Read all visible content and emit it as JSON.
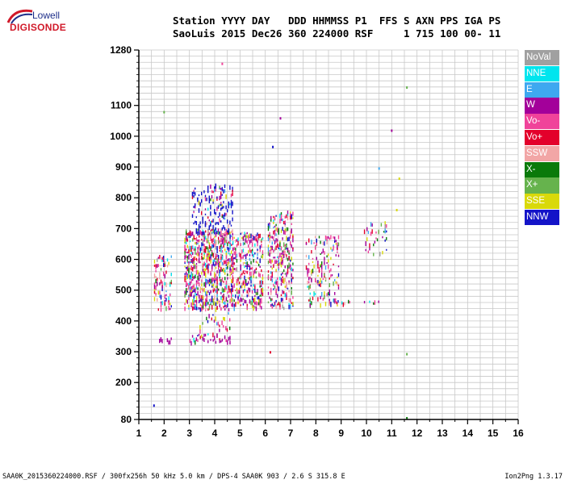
{
  "logo": {
    "top_text": "Lowell",
    "bottom_text": "DIGISONDE"
  },
  "header": {
    "line1": "Station YYYY DAY   DDD HHMMSS P1  FFS S AXN PPS IGA PS",
    "line2": "SaoLuis 2015 Dec26 360 224000 RSF     1 715 100 00- 11"
  },
  "legend": [
    {
      "label": "NoVal",
      "color": "#a0a0a0"
    },
    {
      "label": "NNE",
      "color": "#00e5ee"
    },
    {
      "label": "E",
      "color": "#3ea8f0"
    },
    {
      "label": "W",
      "color": "#a3009a"
    },
    {
      "label": "Vo-",
      "color": "#f0439a"
    },
    {
      "label": "Vo+",
      "color": "#e3002b"
    },
    {
      "label": "SSW",
      "color": "#f2a6a6"
    },
    {
      "label": "X-",
      "color": "#0a7a0a"
    },
    {
      "label": "X+",
      "color": "#66b34d"
    },
    {
      "label": "SSE",
      "color": "#d9d90a"
    },
    {
      "label": "NNW",
      "color": "#1414c8"
    }
  ],
  "footer": {
    "left": "SAA0K_2015360224000.RSF / 300fx256h 50 kHz 5.0 km / DPS-4 SAA0K 903 / 2.6 S 315.8 E",
    "right": "Ion2Png 1.3.17"
  },
  "chart_data": {
    "type": "scatter",
    "xlim": [
      1,
      16
    ],
    "ylim": [
      80,
      1280
    ],
    "x_ticks": [
      "1",
      "2",
      "3",
      "4",
      "5",
      "6",
      "7",
      "8",
      "9",
      "10",
      "11",
      "12",
      "13",
      "14",
      "15",
      "16"
    ],
    "y_ticks": [
      "80",
      "200",
      "300",
      "400",
      "500",
      "600",
      "700",
      "800",
      "900",
      "1000",
      "1100",
      "1280"
    ],
    "grid": true,
    "legend_position": "right",
    "clusters": [
      {
        "x_range": [
          1.6,
          2.3
        ],
        "y_range": [
          440,
          620
        ],
        "density": 0.55
      },
      {
        "x_range": [
          1.8,
          2.3
        ],
        "y_range": [
          335,
          350
        ],
        "density": 0.5
      },
      {
        "x_range": [
          2.8,
          4.7
        ],
        "y_range": [
          440,
          700
        ],
        "density": 0.8
      },
      {
        "x_range": [
          3.1,
          4.7
        ],
        "y_range": [
          690,
          850
        ],
        "density": 0.5
      },
      {
        "x_range": [
          3.0,
          4.6
        ],
        "y_range": [
          335,
          360
        ],
        "density": 0.6
      },
      {
        "x_range": [
          3.4,
          4.6
        ],
        "y_range": [
          360,
          430
        ],
        "density": 0.35
      },
      {
        "x_range": [
          4.7,
          5.9
        ],
        "y_range": [
          445,
          690
        ],
        "density": 0.65
      },
      {
        "x_range": [
          6.1,
          7.1
        ],
        "y_range": [
          445,
          760
        ],
        "density": 0.6
      },
      {
        "x_range": [
          7.6,
          8.9
        ],
        "y_range": [
          455,
          680
        ],
        "density": 0.45
      },
      {
        "x_range": [
          8.5,
          9.4
        ],
        "y_range": [
          460,
          475
        ],
        "density": 0.6
      },
      {
        "x_range": [
          9.9,
          10.8
        ],
        "y_range": [
          620,
          730
        ],
        "density": 0.35
      },
      {
        "x_range": [
          9.9,
          10.5
        ],
        "y_range": [
          460,
          470
        ],
        "density": 0.5
      }
    ],
    "isolated_points": [
      {
        "x": 1.6,
        "y": 125,
        "series": "NNW"
      },
      {
        "x": 11.6,
        "y": 84,
        "series": "X-"
      },
      {
        "x": 11.6,
        "y": 292,
        "series": "X+"
      },
      {
        "x": 11.6,
        "y": 1158,
        "series": "X+"
      },
      {
        "x": 11.0,
        "y": 1018,
        "series": "W"
      },
      {
        "x": 6.6,
        "y": 1058,
        "series": "W"
      },
      {
        "x": 6.3,
        "y": 965,
        "series": "NNW"
      },
      {
        "x": 2.0,
        "y": 1078,
        "series": "X+"
      },
      {
        "x": 4.3,
        "y": 1235,
        "series": "Vo-"
      },
      {
        "x": 10.5,
        "y": 895,
        "series": "E"
      },
      {
        "x": 11.3,
        "y": 862,
        "series": "SSE"
      },
      {
        "x": 11.2,
        "y": 760,
        "series": "SSE"
      },
      {
        "x": 6.2,
        "y": 298,
        "series": "Vo+"
      }
    ]
  }
}
